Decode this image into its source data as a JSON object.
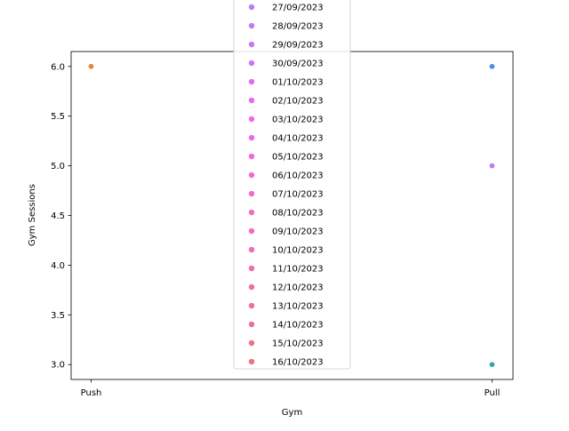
{
  "chart_data": {
    "type": "scatter",
    "xlabel": "Gym",
    "ylabel": "Gym Sessions",
    "x_categories": [
      "Push",
      "Pull"
    ],
    "ylim": [
      2.85,
      6.15
    ],
    "yticks": [
      "3.0",
      "3.5",
      "4.0",
      "4.5",
      "5.0",
      "5.5",
      "6.0"
    ],
    "grid": false,
    "legend_placement": "upper center",
    "points": [
      {
        "x": "Push",
        "y": 6.0,
        "color": "#e8833a"
      },
      {
        "x": "Pull",
        "y": 6.0,
        "color": "#4a90e2"
      },
      {
        "x": "Pull",
        "y": 5.0,
        "color": "#b77ef5"
      },
      {
        "x": "Pull",
        "y": 3.0,
        "color": "#36a2b3"
      }
    ],
    "legend": [
      {
        "label": "27/09/2023",
        "color": "#b77ef5"
      },
      {
        "label": "28/09/2023",
        "color": "#bf7af5"
      },
      {
        "label": "29/09/2023",
        "color": "#c878f4"
      },
      {
        "label": "30/09/2023",
        "color": "#d272f3"
      },
      {
        "label": "01/10/2023",
        "color": "#dc6ef2"
      },
      {
        "label": "02/10/2023",
        "color": "#e46cee"
      },
      {
        "label": "03/10/2023",
        "color": "#ec69ea"
      },
      {
        "label": "04/10/2023",
        "color": "#f168e2"
      },
      {
        "label": "05/10/2023",
        "color": "#f368db"
      },
      {
        "label": "06/10/2023",
        "color": "#f468d4"
      },
      {
        "label": "07/10/2023",
        "color": "#f469cc"
      },
      {
        "label": "08/10/2023",
        "color": "#f36ac4"
      },
      {
        "label": "09/10/2023",
        "color": "#f36bbc"
      },
      {
        "label": "10/10/2023",
        "color": "#f26cb4"
      },
      {
        "label": "11/10/2023",
        "color": "#f16dab"
      },
      {
        "label": "12/10/2023",
        "color": "#f06ea3"
      },
      {
        "label": "13/10/2023",
        "color": "#ef6f9a"
      },
      {
        "label": "14/10/2023",
        "color": "#ee7091"
      },
      {
        "label": "15/10/2023",
        "color": "#ed7188"
      },
      {
        "label": "16/10/2023",
        "color": "#ec727f"
      }
    ]
  }
}
